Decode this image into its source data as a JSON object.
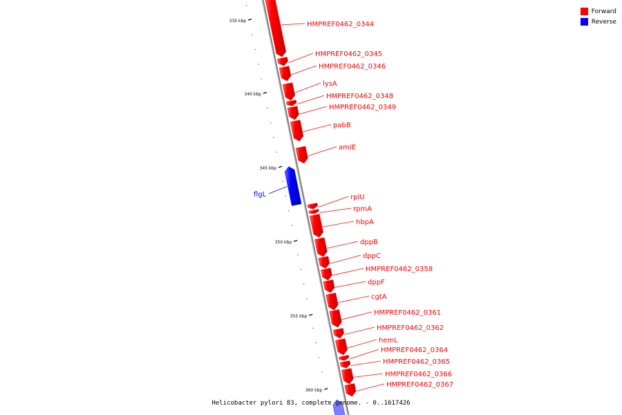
{
  "title": "Helicobacter pylori 83, complete genome. - 0..1617426",
  "legend": {
    "forward": {
      "label": "Forward",
      "color": "#ff0000"
    },
    "reverse": {
      "label": "Reverse",
      "color": "#0000ff"
    }
  },
  "scale_labels": [
    "335 kbp",
    "340 kbp",
    "345 kbp",
    "350 kbp",
    "355 kbp",
    "360 kbp"
  ],
  "genes": [
    {
      "name": "HMPREF0462_0344",
      "strand": "forward"
    },
    {
      "name": "HMPREF0462_0345",
      "strand": "forward"
    },
    {
      "name": "HMPREF0462_0346",
      "strand": "forward"
    },
    {
      "name": "lysA",
      "strand": "forward"
    },
    {
      "name": "HMPREF0462_0348",
      "strand": "forward"
    },
    {
      "name": "HMPREF0462_0349",
      "strand": "forward"
    },
    {
      "name": "pabB",
      "strand": "forward"
    },
    {
      "name": "amiE",
      "strand": "forward"
    },
    {
      "name": "flgL",
      "strand": "reverse"
    },
    {
      "name": "rplU",
      "strand": "forward"
    },
    {
      "name": "rpmA",
      "strand": "forward"
    },
    {
      "name": "hbpA",
      "strand": "forward"
    },
    {
      "name": "dppB",
      "strand": "forward"
    },
    {
      "name": "dppC",
      "strand": "forward"
    },
    {
      "name": "HMPREF0462_0358",
      "strand": "forward"
    },
    {
      "name": "dppF",
      "strand": "forward"
    },
    {
      "name": "cgtA",
      "strand": "forward"
    },
    {
      "name": "HMPREF0462_0361",
      "strand": "forward"
    },
    {
      "name": "HMPREF0462_0362",
      "strand": "forward"
    },
    {
      "name": "hemL",
      "strand": "forward"
    },
    {
      "name": "HMPREF0462_0364",
      "strand": "forward"
    },
    {
      "name": "HMPREF0462_0365",
      "strand": "forward"
    },
    {
      "name": "HMPREF0462_0366",
      "strand": "forward"
    },
    {
      "name": "HMPREF0462_0367",
      "strand": "forward"
    }
  ]
}
